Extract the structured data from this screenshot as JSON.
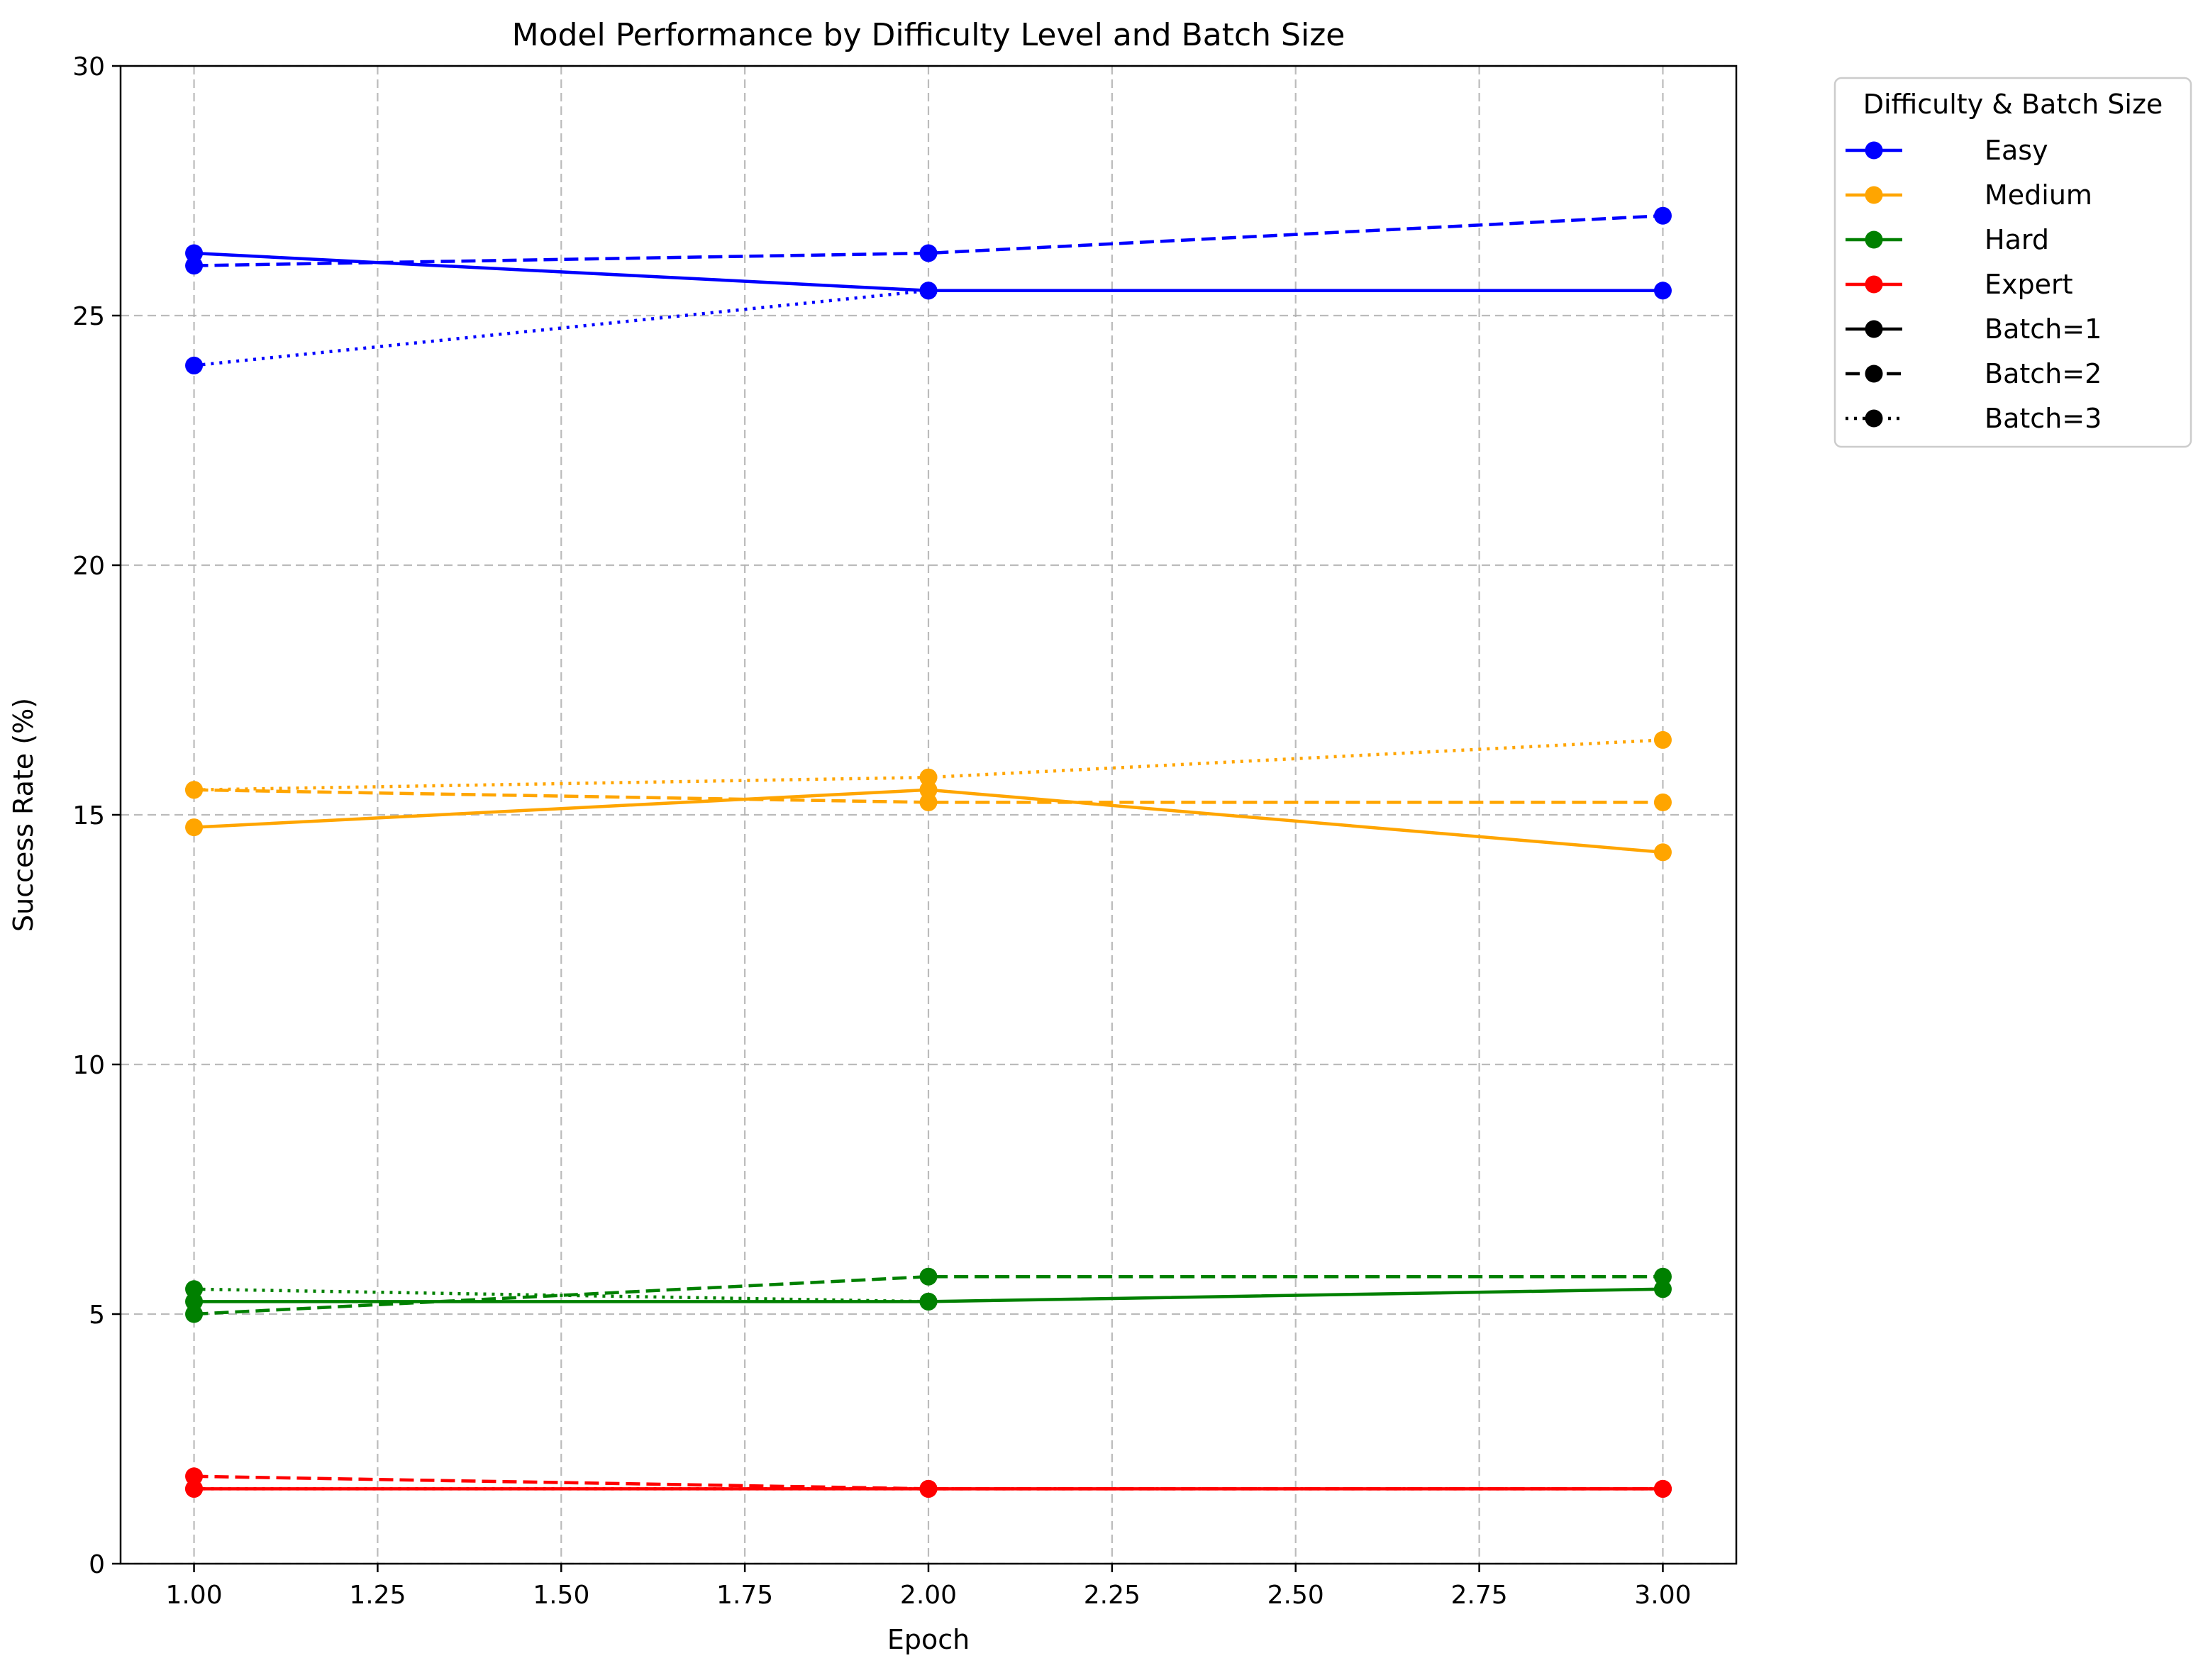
{
  "chart_data": {
    "type": "line",
    "title": "Model Performance by Difficulty Level and Batch Size",
    "xlabel": "Epoch",
    "ylabel": "Success Rate (%)",
    "xlim": [
      0.9,
      3.1
    ],
    "ylim": [
      0,
      30
    ],
    "xticks": [
      "1.00",
      "1.25",
      "1.50",
      "1.75",
      "2.00",
      "2.25",
      "2.50",
      "2.75",
      "3.00"
    ],
    "yticks": [
      "0",
      "5",
      "10",
      "15",
      "20",
      "25",
      "30"
    ],
    "grid": true,
    "legend": {
      "title": "Difficulty & Batch Size",
      "placement": "outside-top-right",
      "entries": [
        {
          "label": "Easy",
          "color": "#0000ff",
          "style": "solid"
        },
        {
          "label": "Medium",
          "color": "#ffa500",
          "style": "solid"
        },
        {
          "label": "Hard",
          "color": "#008000",
          "style": "solid"
        },
        {
          "label": "Expert",
          "color": "#ff0000",
          "style": "solid"
        },
        {
          "label": "Batch=1",
          "color": "#000000",
          "style": "solid"
        },
        {
          "label": "Batch=2",
          "color": "#000000",
          "style": "dashed"
        },
        {
          "label": "Batch=3",
          "color": "#000000",
          "style": "dotted"
        }
      ]
    },
    "series": [
      {
        "difficulty": "Easy",
        "batch": 1,
        "color": "#0000ff",
        "style": "solid",
        "x": [
          1,
          2,
          3
        ],
        "y": [
          26.25,
          25.5,
          25.5
        ]
      },
      {
        "difficulty": "Easy",
        "batch": 2,
        "color": "#0000ff",
        "style": "dashed",
        "x": [
          1,
          2,
          3
        ],
        "y": [
          26.0,
          26.25,
          27.0
        ]
      },
      {
        "difficulty": "Easy",
        "batch": 3,
        "color": "#0000ff",
        "style": "dotted",
        "x": [
          1,
          2
        ],
        "y": [
          24.0,
          25.5
        ]
      },
      {
        "difficulty": "Medium",
        "batch": 1,
        "color": "#ffa500",
        "style": "solid",
        "x": [
          1,
          2,
          3
        ],
        "y": [
          14.75,
          15.5,
          14.25
        ]
      },
      {
        "difficulty": "Medium",
        "batch": 2,
        "color": "#ffa500",
        "style": "dashed",
        "x": [
          1,
          2,
          3
        ],
        "y": [
          15.5,
          15.25,
          15.25
        ]
      },
      {
        "difficulty": "Medium",
        "batch": 3,
        "color": "#ffa500",
        "style": "dotted",
        "x": [
          1,
          2,
          3
        ],
        "y": [
          15.5,
          15.75,
          16.5
        ]
      },
      {
        "difficulty": "Hard",
        "batch": 1,
        "color": "#008000",
        "style": "solid",
        "x": [
          1,
          2,
          3
        ],
        "y": [
          5.25,
          5.25,
          5.5
        ]
      },
      {
        "difficulty": "Hard",
        "batch": 2,
        "color": "#008000",
        "style": "dashed",
        "x": [
          1,
          2,
          3
        ],
        "y": [
          5.0,
          5.75,
          5.75
        ]
      },
      {
        "difficulty": "Hard",
        "batch": 3,
        "color": "#008000",
        "style": "dotted",
        "x": [
          1,
          2
        ],
        "y": [
          5.5,
          5.25
        ]
      },
      {
        "difficulty": "Expert",
        "batch": 1,
        "color": "#ff0000",
        "style": "solid",
        "x": [
          1,
          2,
          3
        ],
        "y": [
          1.5,
          1.5,
          1.5
        ]
      },
      {
        "difficulty": "Expert",
        "batch": 2,
        "color": "#ff0000",
        "style": "dashed",
        "x": [
          1,
          2,
          3
        ],
        "y": [
          1.75,
          1.5,
          1.5
        ]
      },
      {
        "difficulty": "Expert",
        "batch": 3,
        "color": "#ff0000",
        "style": "dotted",
        "x": [
          1,
          2,
          3
        ],
        "y": [
          1.5,
          1.5,
          1.5
        ]
      }
    ]
  }
}
